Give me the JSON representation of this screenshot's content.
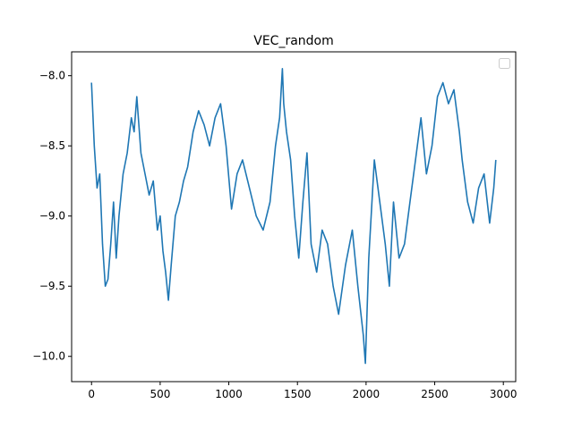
{
  "chart_data": {
    "type": "line",
    "title": "VEC_random",
    "xlabel": "",
    "ylabel": "",
    "xlim": [
      -145,
      3090
    ],
    "ylim": [
      -10.18,
      -7.83
    ],
    "xticks": [
      0,
      500,
      1000,
      1500,
      2000,
      2500,
      3000
    ],
    "xtick_labels": [
      "0",
      "500",
      "1000",
      "1500",
      "2000",
      "2500",
      "3000"
    ],
    "yticks": [
      -8.0,
      -8.5,
      -9.0,
      -9.5,
      -10.0
    ],
    "ytick_labels": [
      "−8.0",
      "−8.5",
      "−9.0",
      "−9.5",
      "−10.0"
    ],
    "grid": false,
    "legend": {
      "placement": "top-right",
      "entries": []
    },
    "series": [
      {
        "color": "#1f77b4",
        "x": [
          0,
          20,
          40,
          60,
          80,
          100,
          120,
          140,
          160,
          180,
          200,
          230,
          260,
          290,
          310,
          330,
          360,
          390,
          420,
          450,
          480,
          500,
          520,
          540,
          560,
          580,
          610,
          640,
          670,
          700,
          740,
          780,
          820,
          860,
          900,
          940,
          980,
          1020,
          1060,
          1100,
          1150,
          1200,
          1250,
          1300,
          1340,
          1370,
          1390,
          1400,
          1420,
          1450,
          1480,
          1510,
          1540,
          1570,
          1600,
          1640,
          1680,
          1720,
          1760,
          1800,
          1850,
          1900,
          1940,
          1980,
          1995,
          2020,
          2060,
          2100,
          2140,
          2170,
          2200,
          2240,
          2280,
          2320,
          2360,
          2400,
          2440,
          2480,
          2520,
          2560,
          2600,
          2640,
          2680,
          2700,
          2740,
          2780,
          2820,
          2860,
          2900,
          2930,
          2945
        ],
        "y": [
          -8.05,
          -8.5,
          -8.8,
          -8.7,
          -9.2,
          -9.5,
          -9.45,
          -9.2,
          -8.9,
          -9.3,
          -9.0,
          -8.7,
          -8.55,
          -8.3,
          -8.4,
          -8.15,
          -8.55,
          -8.7,
          -8.85,
          -8.75,
          -9.1,
          -9.0,
          -9.25,
          -9.4,
          -9.6,
          -9.35,
          -9.0,
          -8.9,
          -8.75,
          -8.65,
          -8.4,
          -8.25,
          -8.35,
          -8.5,
          -8.3,
          -8.2,
          -8.5,
          -8.95,
          -8.7,
          -8.6,
          -8.8,
          -9.0,
          -9.1,
          -8.9,
          -8.5,
          -8.3,
          -7.95,
          -8.2,
          -8.4,
          -8.6,
          -9.0,
          -9.3,
          -8.9,
          -8.55,
          -9.2,
          -9.4,
          -9.1,
          -9.2,
          -9.5,
          -9.7,
          -9.35,
          -9.1,
          -9.5,
          -9.85,
          -10.05,
          -9.3,
          -8.6,
          -8.9,
          -9.2,
          -9.5,
          -8.9,
          -9.3,
          -9.2,
          -8.9,
          -8.6,
          -8.3,
          -8.7,
          -8.5,
          -8.15,
          -8.05,
          -8.2,
          -8.1,
          -8.4,
          -8.6,
          -8.9,
          -9.05,
          -8.8,
          -8.7,
          -9.05,
          -8.8,
          -8.6
        ]
      }
    ]
  }
}
